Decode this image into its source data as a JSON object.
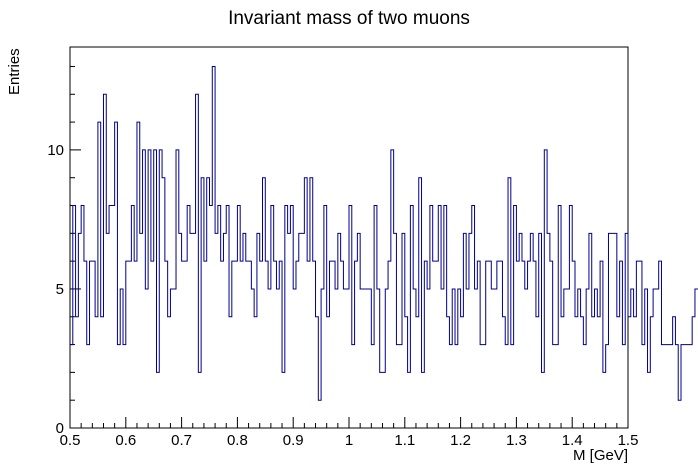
{
  "chart_data": {
    "type": "histogram",
    "title": "Invariant mass of two muons",
    "xlabel": "M [GeV]",
    "ylabel": "Entries",
    "xlim": [
      0.5,
      1.5
    ],
    "ylim": [
      0,
      13.7
    ],
    "bin_width": 0.005,
    "x_ticks": [
      0.5,
      0.6,
      0.7,
      0.8,
      0.9,
      1,
      1.1,
      1.2,
      1.3,
      1.4,
      1.5
    ],
    "x_tick_labels": [
      "0.5",
      "0.6",
      "0.7",
      "0.8",
      "0.9",
      "1",
      "1.1",
      "1.2",
      "1.3",
      "1.4",
      "1.5"
    ],
    "y_ticks": [
      0,
      5,
      10
    ],
    "y_tick_labels": [
      "0",
      "5",
      "10"
    ],
    "grid": false,
    "line_color": "#00008b",
    "values": [
      3,
      8,
      4,
      7,
      8,
      6,
      3,
      6,
      6,
      4,
      11,
      4,
      12,
      7,
      8,
      8,
      11,
      3,
      5,
      3,
      6,
      6,
      8,
      6,
      11,
      7,
      10,
      5,
      10,
      6,
      10,
      2,
      10,
      9,
      6,
      4,
      5,
      5,
      10,
      7,
      6,
      6,
      8,
      7,
      7,
      12,
      2,
      9,
      6,
      9,
      8,
      13,
      7,
      8,
      6,
      7,
      8,
      4,
      6,
      6,
      8,
      6,
      7,
      6,
      6,
      5,
      4,
      7,
      6,
      9,
      6,
      5,
      8,
      6,
      5,
      6,
      2,
      8,
      7,
      8,
      5,
      6,
      7,
      7,
      9,
      6,
      9,
      6,
      4,
      1,
      5,
      8,
      4,
      6,
      6,
      5,
      7,
      6,
      5,
      5,
      8,
      3,
      6,
      7,
      5,
      5,
      5,
      5,
      3,
      8,
      5,
      2,
      2,
      5,
      6,
      10,
      7,
      3,
      3,
      7,
      4,
      2,
      8,
      5,
      4,
      9,
      2,
      6,
      5,
      8,
      6,
      6,
      8,
      5,
      8,
      4,
      3,
      5,
      3,
      5,
      4,
      7,
      5,
      7,
      8,
      5,
      6,
      3,
      3,
      6,
      6,
      5,
      5,
      6,
      6,
      4,
      3,
      9,
      3,
      8,
      6,
      7,
      6,
      5,
      6,
      7,
      6,
      4,
      7,
      2,
      10,
      7,
      6,
      3,
      3,
      8,
      4,
      5,
      5,
      8,
      6,
      4,
      5,
      4,
      3,
      5,
      7,
      4,
      5,
      4,
      6,
      2,
      3,
      7,
      7,
      7,
      4,
      6,
      3,
      7,
      4,
      5,
      4,
      6,
      6,
      3,
      5,
      2,
      4,
      5,
      5,
      6,
      3,
      3,
      3,
      3,
      4,
      3,
      1,
      3,
      3,
      3,
      3,
      4,
      5,
      5,
      5,
      3,
      3,
      3,
      6,
      4,
      6,
      6,
      4,
      3,
      3,
      3,
      3,
      5,
      3,
      3,
      3,
      4,
      4,
      4,
      4,
      4,
      3,
      3,
      3,
      3,
      3,
      3,
      3,
      3,
      3,
      3,
      3,
      3,
      3,
      3,
      3,
      3,
      3,
      3,
      3,
      3,
      3,
      3,
      3,
      3,
      3,
      3,
      3,
      3,
      3,
      3,
      3,
      3,
      3,
      3,
      3,
      3,
      3,
      3,
      3,
      3,
      3,
      3,
      3,
      3,
      3,
      3
    ]
  }
}
